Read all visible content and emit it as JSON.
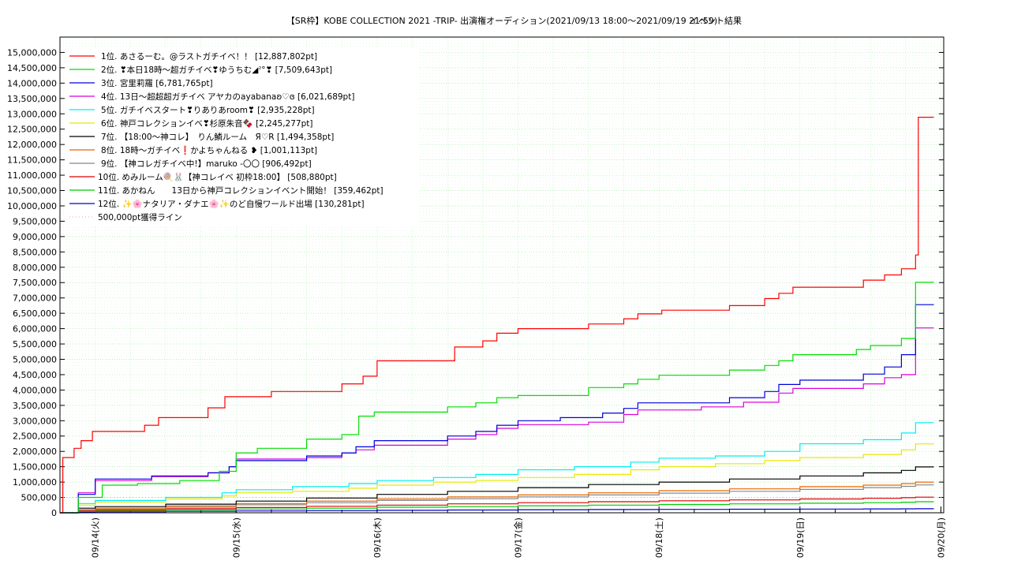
{
  "chart_data": {
    "type": "line",
    "title": "【SR枠】KOBE COLLECTION 2021 -TRIP- 出演権オーディション(2021/09/13 18:00～2021/09/19 21:59)",
    "subtitle": "イベント結果",
    "xlabel": "",
    "ylabel": "",
    "x_ticks": [
      "09/14(火)",
      "09/15(水)",
      "09/16(木)",
      "09/17(金)",
      "09/18(土)",
      "09/19(日)",
      "09/20(月)"
    ],
    "y_ticks": [
      "15,000,000",
      "14,500,000",
      "14,000,000",
      "13,500,000",
      "13,000,000",
      "12,500,000",
      "12,000,000",
      "11,500,000",
      "11,000,000",
      "10,500,000",
      "10,000,000",
      "9,500,000",
      "9,000,000",
      "8,500,000",
      "8,000,000",
      "7,500,000",
      "7,000,000",
      "6,500,000",
      "6,000,000",
      "5,500,000",
      "5,000,000",
      "4,500,000",
      "4,000,000",
      "3,500,000",
      "3,000,000",
      "2,500,000",
      "2,000,000",
      "1,500,000",
      "1,000,000",
      "500,000",
      "0"
    ],
    "xlim": [
      -0.25,
      6.02
    ],
    "ylim": [
      0,
      15500000
    ],
    "grid": true,
    "legend_position": "top-left",
    "reference_line": {
      "name": "500,000pt獲得ライン",
      "value": 500000,
      "color": "#ff9999"
    },
    "series": [
      {
        "name": "1位. あさるーむ。@ラストガチイベ！！ [12,887,802pt]",
        "color": "#ff0000",
        "points": [
          [
            -0.25,
            0
          ],
          [
            -0.23,
            1800000
          ],
          [
            -0.15,
            2100000
          ],
          [
            -0.1,
            2350000
          ],
          [
            -0.02,
            2650000
          ],
          [
            0.35,
            2850000
          ],
          [
            0.45,
            3100000
          ],
          [
            0.8,
            3420000
          ],
          [
            0.92,
            3780000
          ],
          [
            1.25,
            3950000
          ],
          [
            1.75,
            4200000
          ],
          [
            1.9,
            4450000
          ],
          [
            2.0,
            4950000
          ],
          [
            2.55,
            5400000
          ],
          [
            2.75,
            5600000
          ],
          [
            2.85,
            5850000
          ],
          [
            3.0,
            6000000
          ],
          [
            3.5,
            6150000
          ],
          [
            3.75,
            6320000
          ],
          [
            3.85,
            6480000
          ],
          [
            4.02,
            6600000
          ],
          [
            4.5,
            6750000
          ],
          [
            4.75,
            6980000
          ],
          [
            4.85,
            7150000
          ],
          [
            4.95,
            7350000
          ],
          [
            5.45,
            7580000
          ],
          [
            5.6,
            7750000
          ],
          [
            5.72,
            7950000
          ],
          [
            5.82,
            8400000
          ],
          [
            5.84,
            12887802
          ],
          [
            5.95,
            12887802
          ]
        ]
      },
      {
        "name": "2位. ❣本日18時〜超ガチイベ❣ゆうちむ◢ˀ°❣ [7,509,643pt]",
        "color": "#00dd00",
        "points": [
          [
            -0.25,
            0
          ],
          [
            -0.12,
            500000
          ],
          [
            0.05,
            900000
          ],
          [
            0.3,
            950000
          ],
          [
            0.6,
            1050000
          ],
          [
            0.88,
            1350000
          ],
          [
            1.0,
            1950000
          ],
          [
            1.15,
            2100000
          ],
          [
            1.5,
            2400000
          ],
          [
            1.75,
            2550000
          ],
          [
            1.87,
            3150000
          ],
          [
            1.98,
            3280000
          ],
          [
            2.5,
            3450000
          ],
          [
            2.7,
            3580000
          ],
          [
            2.85,
            3750000
          ],
          [
            3.0,
            3820000
          ],
          [
            3.5,
            4080000
          ],
          [
            3.75,
            4200000
          ],
          [
            3.85,
            4350000
          ],
          [
            4.0,
            4480000
          ],
          [
            4.5,
            4650000
          ],
          [
            4.75,
            4800000
          ],
          [
            4.85,
            4950000
          ],
          [
            4.95,
            5150000
          ],
          [
            5.4,
            5320000
          ],
          [
            5.5,
            5450000
          ],
          [
            5.72,
            5680000
          ],
          [
            5.82,
            7509643
          ],
          [
            5.95,
            7509643
          ]
        ]
      },
      {
        "name": "3位. 宮里莉羅 [6,781,765pt]",
        "color": "#0000dd",
        "points": [
          [
            -0.25,
            0
          ],
          [
            -0.12,
            600000
          ],
          [
            0.0,
            1100000
          ],
          [
            0.4,
            1200000
          ],
          [
            0.8,
            1300000
          ],
          [
            0.95,
            1500000
          ],
          [
            1.0,
            1700000
          ],
          [
            1.5,
            1850000
          ],
          [
            1.75,
            1950000
          ],
          [
            1.85,
            2150000
          ],
          [
            1.98,
            2350000
          ],
          [
            2.5,
            2500000
          ],
          [
            2.7,
            2650000
          ],
          [
            2.85,
            2850000
          ],
          [
            3.0,
            3000000
          ],
          [
            3.3,
            3100000
          ],
          [
            3.6,
            3250000
          ],
          [
            3.75,
            3400000
          ],
          [
            3.85,
            3580000
          ],
          [
            4.5,
            3750000
          ],
          [
            4.75,
            3950000
          ],
          [
            4.85,
            4180000
          ],
          [
            5.0,
            4320000
          ],
          [
            5.45,
            4520000
          ],
          [
            5.6,
            4750000
          ],
          [
            5.72,
            5150000
          ],
          [
            5.82,
            6781765
          ],
          [
            5.95,
            6781765
          ]
        ]
      },
      {
        "name": "4位. 13日〜超超超ガチイベ アヤカのayabanaʚ♡ɞ [6,021,689pt]",
        "color": "#dd00dd",
        "points": [
          [
            -0.25,
            0
          ],
          [
            -0.12,
            650000
          ],
          [
            0.0,
            1050000
          ],
          [
            0.4,
            1180000
          ],
          [
            0.8,
            1300000
          ],
          [
            0.95,
            1500000
          ],
          [
            1.0,
            1750000
          ],
          [
            1.5,
            1800000
          ],
          [
            1.75,
            1950000
          ],
          [
            1.85,
            2050000
          ],
          [
            1.98,
            2200000
          ],
          [
            2.5,
            2400000
          ],
          [
            2.7,
            2550000
          ],
          [
            2.85,
            2750000
          ],
          [
            3.0,
            2870000
          ],
          [
            3.5,
            2950000
          ],
          [
            3.75,
            3200000
          ],
          [
            3.85,
            3350000
          ],
          [
            4.3,
            3450000
          ],
          [
            4.6,
            3600000
          ],
          [
            4.85,
            3900000
          ],
          [
            4.95,
            4050000
          ],
          [
            5.45,
            4200000
          ],
          [
            5.6,
            4400000
          ],
          [
            5.72,
            4500000
          ],
          [
            5.82,
            6021689
          ],
          [
            5.95,
            6021689
          ]
        ]
      },
      {
        "name": "5位. ガチイベスタート❣りありあroom❣ [2,935,228pt]",
        "color": "#00eeee",
        "points": [
          [
            -0.25,
            0
          ],
          [
            -0.12,
            300000
          ],
          [
            0.0,
            400000
          ],
          [
            0.5,
            500000
          ],
          [
            0.9,
            650000
          ],
          [
            1.0,
            750000
          ],
          [
            1.4,
            850000
          ],
          [
            1.8,
            950000
          ],
          [
            2.0,
            1050000
          ],
          [
            2.4,
            1150000
          ],
          [
            2.7,
            1250000
          ],
          [
            3.0,
            1400000
          ],
          [
            3.4,
            1500000
          ],
          [
            3.8,
            1650000
          ],
          [
            4.0,
            1780000
          ],
          [
            4.4,
            1850000
          ],
          [
            4.75,
            2000000
          ],
          [
            5.0,
            2250000
          ],
          [
            5.45,
            2380000
          ],
          [
            5.72,
            2600000
          ],
          [
            5.82,
            2935228
          ],
          [
            5.95,
            2935228
          ]
        ]
      },
      {
        "name": "6位. 神戸コレクションイベ❣杉原朱音🍫 [2,245,277pt]",
        "color": "#e8e800",
        "points": [
          [
            -0.25,
            0
          ],
          [
            -0.12,
            250000
          ],
          [
            0.0,
            350000
          ],
          [
            0.5,
            450000
          ],
          [
            0.9,
            550000
          ],
          [
            1.0,
            650000
          ],
          [
            1.4,
            700000
          ],
          [
            1.8,
            800000
          ],
          [
            2.0,
            900000
          ],
          [
            2.4,
            1000000
          ],
          [
            2.7,
            1050000
          ],
          [
            3.0,
            1150000
          ],
          [
            3.4,
            1250000
          ],
          [
            3.8,
            1400000
          ],
          [
            4.0,
            1500000
          ],
          [
            4.4,
            1600000
          ],
          [
            4.75,
            1700000
          ],
          [
            5.0,
            1800000
          ],
          [
            5.45,
            1900000
          ],
          [
            5.72,
            2050000
          ],
          [
            5.82,
            2245277
          ],
          [
            5.95,
            2245277
          ]
        ]
      },
      {
        "name": "7位. 【18:00〜神コレ】　りん鱗ルーム　Я♡R [1,494,358pt]",
        "color": "#000000",
        "points": [
          [
            -0.25,
            0
          ],
          [
            -0.12,
            150000
          ],
          [
            0.0,
            200000
          ],
          [
            0.5,
            280000
          ],
          [
            1.0,
            380000
          ],
          [
            1.5,
            480000
          ],
          [
            2.0,
            600000
          ],
          [
            2.5,
            700000
          ],
          [
            3.0,
            820000
          ],
          [
            3.5,
            920000
          ],
          [
            4.0,
            1000000
          ],
          [
            4.5,
            1100000
          ],
          [
            5.0,
            1200000
          ],
          [
            5.45,
            1300000
          ],
          [
            5.72,
            1380000
          ],
          [
            5.82,
            1494358
          ],
          [
            5.95,
            1494358
          ]
        ]
      },
      {
        "name": "8位. 18時〜ガチイベ❗かよちゃんねる ❥ [1,001,113pt]",
        "color": "#ee6600",
        "points": [
          [
            -0.25,
            0
          ],
          [
            -0.12,
            100000
          ],
          [
            0.0,
            150000
          ],
          [
            0.5,
            220000
          ],
          [
            1.0,
            300000
          ],
          [
            1.5,
            380000
          ],
          [
            2.0,
            450000
          ],
          [
            2.5,
            520000
          ],
          [
            3.0,
            580000
          ],
          [
            3.5,
            650000
          ],
          [
            4.0,
            720000
          ],
          [
            4.5,
            780000
          ],
          [
            5.0,
            850000
          ],
          [
            5.45,
            900000
          ],
          [
            5.72,
            950000
          ],
          [
            5.82,
            1001113
          ],
          [
            5.95,
            1001113
          ]
        ]
      },
      {
        "name": "9位. 【神コレガチイベ中!】maruko -〇〇 [906,492pt]",
        "color": "#888888",
        "points": [
          [
            -0.25,
            0
          ],
          [
            -0.12,
            80000
          ],
          [
            0.0,
            120000
          ],
          [
            0.5,
            180000
          ],
          [
            1.0,
            260000
          ],
          [
            1.5,
            330000
          ],
          [
            2.0,
            400000
          ],
          [
            2.5,
            460000
          ],
          [
            3.0,
            520000
          ],
          [
            3.5,
            580000
          ],
          [
            4.0,
            640000
          ],
          [
            4.5,
            700000
          ],
          [
            5.0,
            760000
          ],
          [
            5.45,
            820000
          ],
          [
            5.72,
            860000
          ],
          [
            5.82,
            906492
          ],
          [
            5.95,
            906492
          ]
        ]
      },
      {
        "name": "10位. めみルーム🍭🐰【神コレイベ 初枠18:00】 [508,880pt]",
        "color": "#dd0000",
        "points": [
          [
            -0.25,
            0
          ],
          [
            -0.12,
            60000
          ],
          [
            0.0,
            90000
          ],
          [
            0.5,
            130000
          ],
          [
            1.0,
            170000
          ],
          [
            1.5,
            210000
          ],
          [
            2.0,
            250000
          ],
          [
            2.5,
            290000
          ],
          [
            3.0,
            330000
          ],
          [
            3.5,
            360000
          ],
          [
            4.0,
            390000
          ],
          [
            4.5,
            420000
          ],
          [
            5.0,
            450000
          ],
          [
            5.45,
            470000
          ],
          [
            5.72,
            490000
          ],
          [
            5.82,
            508880
          ],
          [
            5.95,
            508880
          ]
        ]
      },
      {
        "name": "11位. あかねん　　13日から神戸コレクションイベント開始！ [359,462pt]",
        "color": "#00cc00",
        "points": [
          [
            -0.25,
            0
          ],
          [
            -0.12,
            40000
          ],
          [
            0.0,
            60000
          ],
          [
            0.5,
            90000
          ],
          [
            1.0,
            120000
          ],
          [
            1.5,
            150000
          ],
          [
            2.0,
            180000
          ],
          [
            2.5,
            200000
          ],
          [
            3.0,
            230000
          ],
          [
            3.5,
            250000
          ],
          [
            4.0,
            270000
          ],
          [
            4.5,
            290000
          ],
          [
            5.0,
            310000
          ],
          [
            5.45,
            330000
          ],
          [
            5.72,
            345000
          ],
          [
            5.82,
            359462
          ],
          [
            5.95,
            359462
          ]
        ]
      },
      {
        "name": "12位. ✨🌸ナタリア・ダナエ🌸✨のど自慢ワールド出場 [130,281pt]",
        "color": "#0000cc",
        "points": [
          [
            -0.25,
            0
          ],
          [
            -0.12,
            20000
          ],
          [
            0.0,
            30000
          ],
          [
            0.5,
            45000
          ],
          [
            1.0,
            60000
          ],
          [
            1.5,
            70000
          ],
          [
            2.0,
            80000
          ],
          [
            2.5,
            90000
          ],
          [
            3.0,
            100000
          ],
          [
            3.5,
            105000
          ],
          [
            4.0,
            110000
          ],
          [
            4.5,
            115000
          ],
          [
            5.0,
            120000
          ],
          [
            5.45,
            125000
          ],
          [
            5.72,
            128000
          ],
          [
            5.82,
            130281
          ],
          [
            5.95,
            130281
          ]
        ]
      }
    ]
  }
}
